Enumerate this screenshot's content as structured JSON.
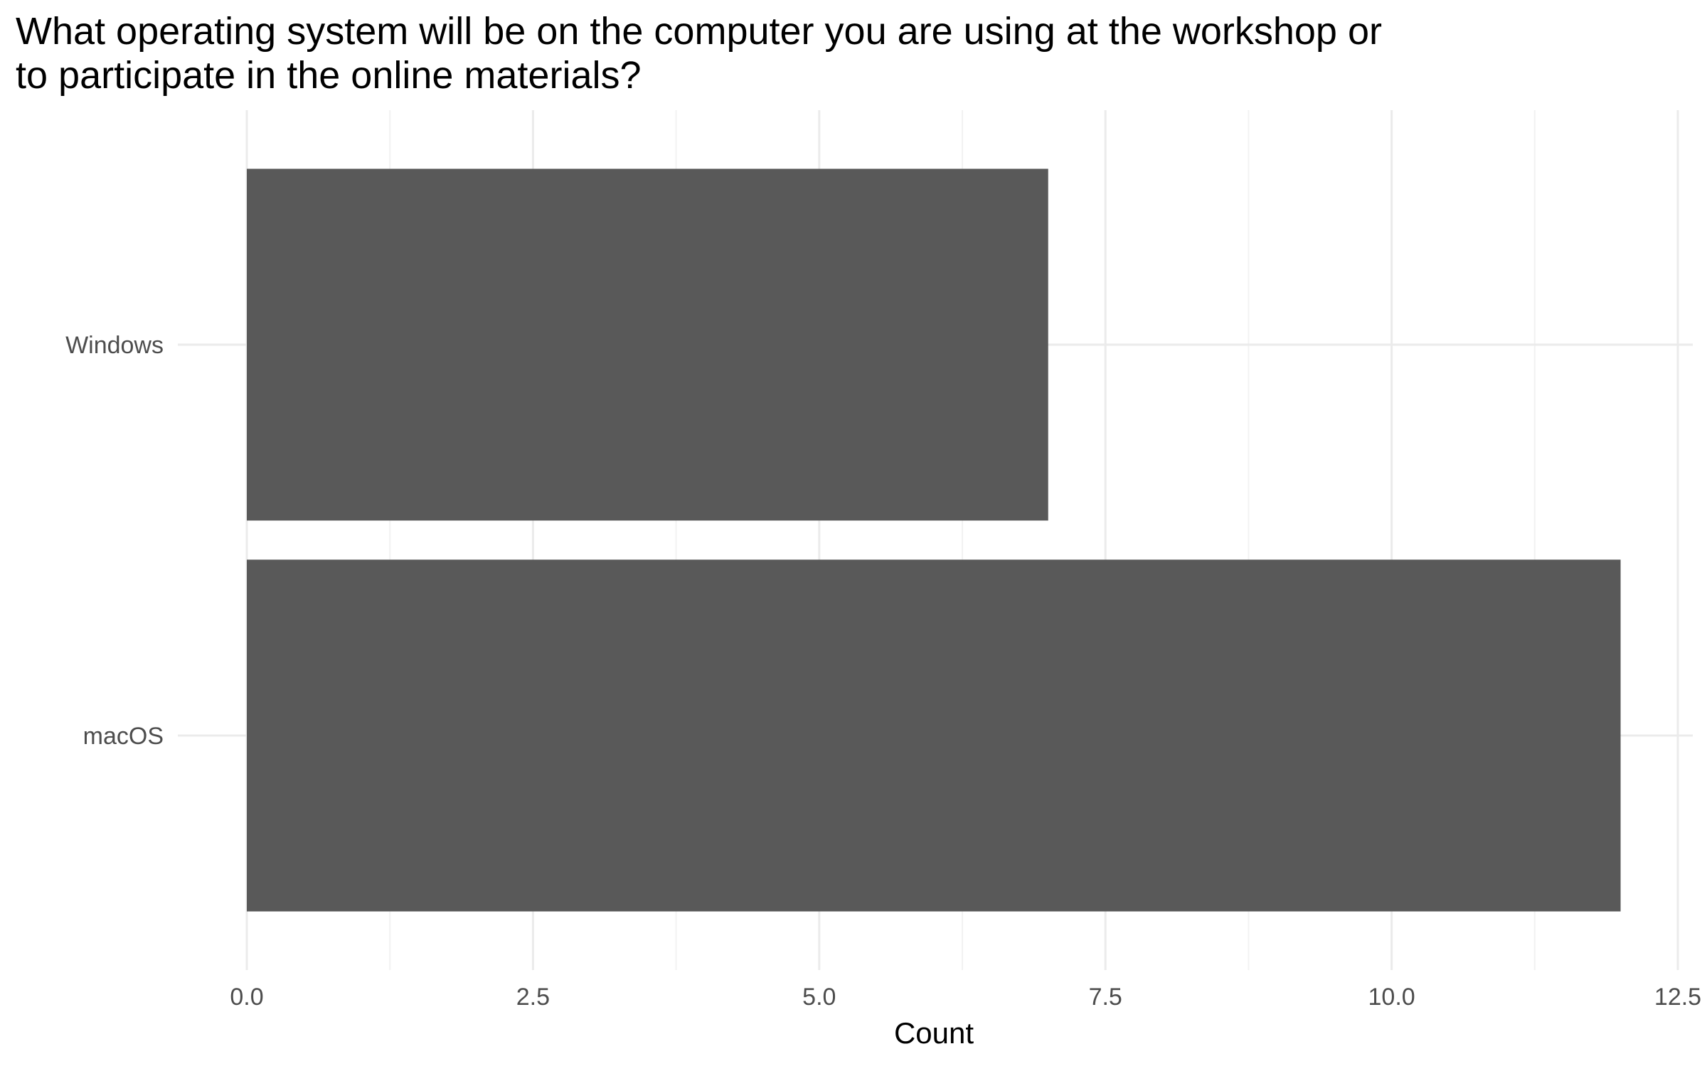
{
  "chart_data": {
    "type": "bar",
    "orientation": "horizontal",
    "title_lines": [
      "What operating system will be on the computer you are using at the workshop or",
      "to participate in the online materials?"
    ],
    "categories": [
      "Windows",
      "macOS"
    ],
    "values": [
      7,
      12
    ],
    "xlabel": "Count",
    "ylabel": "",
    "xlim": [
      0,
      12.5
    ],
    "x_ticks": [
      0,
      2.5,
      5,
      7.5,
      10,
      12.5
    ],
    "x_tick_labels": [
      "0.0",
      "2.5",
      "5.0",
      "7.5",
      "10.0",
      "12.5"
    ],
    "grid": true,
    "legend": "none",
    "colors": {
      "bar": "#595959",
      "grid_major": "#ebebeb",
      "grid_minor": "#f2f2f2",
      "background": "#ffffff"
    }
  }
}
